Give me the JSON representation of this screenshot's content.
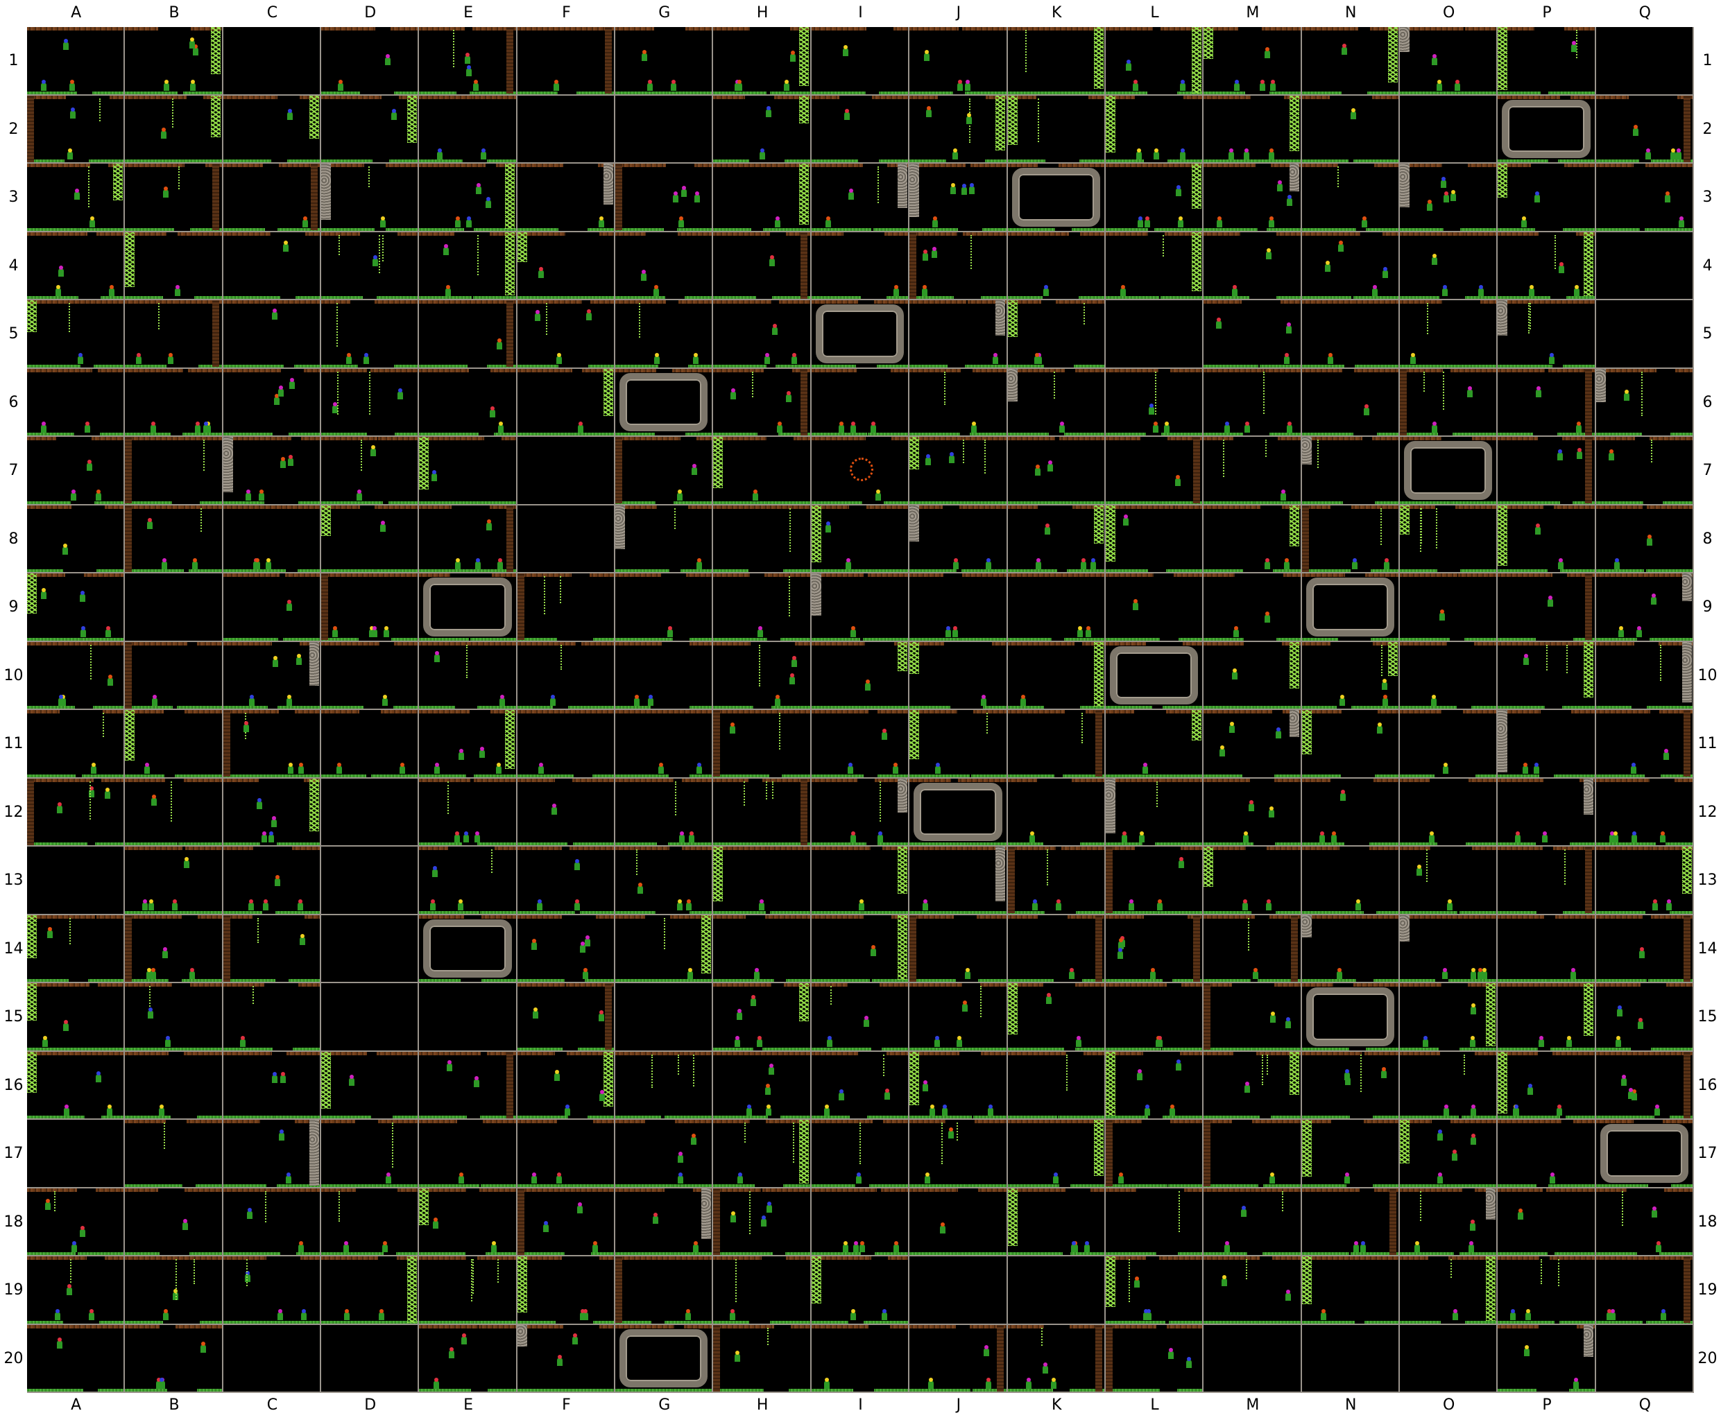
{
  "map": {
    "columns": [
      "A",
      "B",
      "C",
      "D",
      "E",
      "F",
      "G",
      "H",
      "I",
      "J",
      "K",
      "L",
      "M",
      "N",
      "O",
      "P",
      "Q"
    ],
    "rows": [
      "1",
      "2",
      "3",
      "4",
      "5",
      "6",
      "7",
      "8",
      "9",
      "10",
      "11",
      "12",
      "13",
      "14",
      "15",
      "16",
      "17",
      "18",
      "19",
      "20"
    ],
    "cave_cells": [
      "P2",
      "K3",
      "I5",
      "G6",
      "O7",
      "E9",
      "N9",
      "L10",
      "J12",
      "E14",
      "N15",
      "Q17",
      "G20"
    ],
    "ring_cells": [
      "I7"
    ],
    "empty_cells": [
      "C1",
      "Q1",
      "F2",
      "G2",
      "O2",
      "Q4",
      "Q5",
      "L5",
      "F7",
      "F8",
      "B9",
      "D12",
      "D13",
      "D14",
      "D15",
      "A13",
      "E15",
      "G15",
      "J19",
      "K19",
      "C20",
      "D20",
      "M20",
      "N20",
      "O20",
      "Q20",
      "A17"
    ],
    "colors": {
      "background": "#000000",
      "grid_line": "#9a948c",
      "soil": "#6e3b17",
      "grass": "#3a9a2a",
      "vine": "#9ae04c",
      "stone": "#7d766a",
      "flower_red": "#e03040",
      "flower_yellow": "#f0d020",
      "flower_blue": "#3040e0",
      "flower_magenta": "#d020c0",
      "mushroom_orange": "#e05010"
    }
  }
}
